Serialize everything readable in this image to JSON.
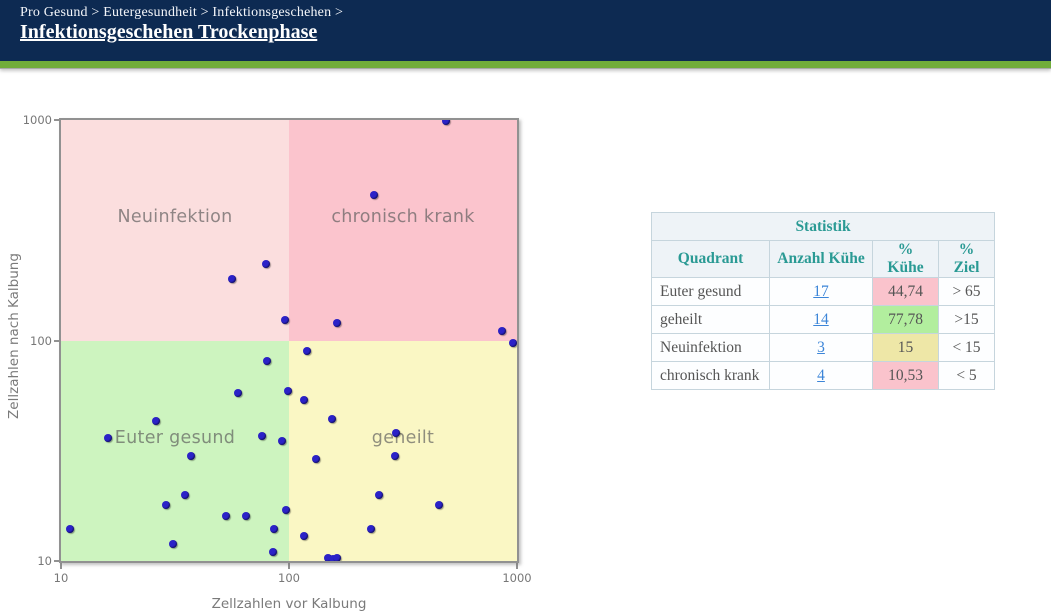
{
  "header": {
    "breadcrumb": "Pro Gesund > Eutergesundheit > Infektionsgeschehen >",
    "title": "Infektionsgeschehen Trockenphase"
  },
  "colors": {
    "header_bg": "#0d2a52",
    "accent_green_bar": "#71ad3a",
    "table_accent_teal": "#2a9a94",
    "link_blue": "#3c85d8",
    "point_blue": "#2b22c8",
    "cell_pink": "#fac3cc",
    "cell_green": "#b2ee9e",
    "cell_yellow": "#eee7a7"
  },
  "chart_data": {
    "type": "scatter",
    "xlabel": "Zellzahlen vor Kalbung",
    "ylabel": "Zellzahlen nach Kalbung",
    "x_scale": "log",
    "y_scale": "log",
    "xlim": [
      10,
      1000
    ],
    "ylim": [
      10,
      1000
    ],
    "x_ticks": [
      10,
      100,
      1000
    ],
    "y_ticks": [
      10,
      100,
      1000
    ],
    "quadrant_threshold": {
      "x": 100,
      "y": 100
    },
    "quadrants": [
      {
        "name": "Neuinfektion",
        "position": "top-left",
        "color": "#fbdede"
      },
      {
        "name": "chronisch krank",
        "position": "top-right",
        "color": "#fbc4cd"
      },
      {
        "name": "Euter gesund",
        "position": "bottom-left",
        "color": "#cdf4bf"
      },
      {
        "name": "geheilt",
        "position": "bottom-right",
        "color": "#faf7c4"
      }
    ],
    "point_color": "#2b22c8",
    "series": [
      {
        "name": "Euter gesund",
        "points": [
          [
            80,
            81
          ],
          [
            60,
            58
          ],
          [
            99,
            59
          ],
          [
            26,
            43
          ],
          [
            16,
            36
          ],
          [
            76,
            37
          ],
          [
            93,
            35
          ],
          [
            37,
            30
          ],
          [
            35,
            20
          ],
          [
            29,
            18
          ],
          [
            53,
            16
          ],
          [
            65,
            16
          ],
          [
            97,
            17
          ],
          [
            11,
            14
          ],
          [
            86,
            14
          ],
          [
            31,
            12
          ],
          [
            85,
            11
          ]
        ]
      },
      {
        "name": "geheilt",
        "points": [
          [
            120,
            90
          ],
          [
            960,
            97
          ],
          [
            116,
            54
          ],
          [
            154,
            44
          ],
          [
            294,
            38
          ],
          [
            292,
            30
          ],
          [
            131,
            29
          ],
          [
            247,
            20
          ],
          [
            455,
            18
          ],
          [
            228,
            14
          ],
          [
            116,
            13
          ],
          [
            148,
            10.3
          ],
          [
            156,
            10.2
          ],
          [
            163,
            10.3
          ]
        ]
      },
      {
        "name": "Neuinfektion",
        "points": [
          [
            56,
            190
          ],
          [
            79,
            223
          ],
          [
            96,
            124
          ]
        ]
      },
      {
        "name": "chronisch krank",
        "points": [
          [
            487,
            990
          ],
          [
            236,
            458
          ],
          [
            163,
            120
          ],
          [
            857,
            110
          ]
        ]
      }
    ]
  },
  "table": {
    "title": "Statistik",
    "columns": [
      "Quadrant",
      "Anzahl Kühe",
      "% Kühe",
      "% Ziel"
    ],
    "rows": [
      {
        "quadrant": "Euter gesund",
        "anzahl": "17",
        "pct": "44,74",
        "pct_color": "pink",
        "ziel": "> 65"
      },
      {
        "quadrant": "geheilt",
        "anzahl": "14",
        "pct": "77,78",
        "pct_color": "green",
        "ziel": ">15"
      },
      {
        "quadrant": "Neuinfektion",
        "anzahl": "3",
        "pct": "15",
        "pct_color": "yellow",
        "ziel": "< 15"
      },
      {
        "quadrant": "chronisch krank",
        "anzahl": "4",
        "pct": "10,53",
        "pct_color": "pink",
        "ziel": "< 5"
      }
    ]
  }
}
